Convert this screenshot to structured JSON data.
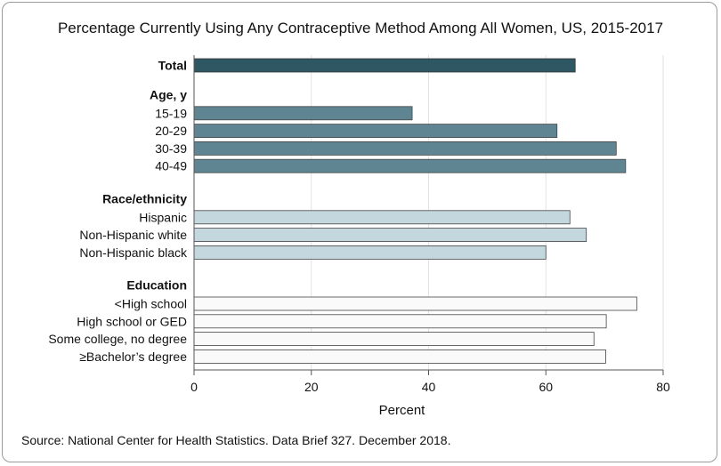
{
  "chart_data": {
    "type": "bar",
    "orientation": "horizontal",
    "title": "Percentage Currently Using Any Contraceptive Method Among All Women, US, 2015-2017",
    "xlabel": "Percent",
    "xlim": [
      0,
      80
    ],
    "xticks": [
      0,
      20,
      40,
      60,
      80
    ],
    "grid": true,
    "groups": [
      {
        "name": "Total",
        "color": "#2e5663",
        "bars": [
          {
            "label": "",
            "value": 65
          }
        ]
      },
      {
        "name": "Age, y",
        "color": "#5f8592",
        "bars": [
          {
            "label": "15-19",
            "value": 37.2
          },
          {
            "label": "20-29",
            "value": 61.9
          },
          {
            "label": "30-39",
            "value": 72.0
          },
          {
            "label": "40-49",
            "value": 73.6
          }
        ]
      },
      {
        "name": "Race/ethnicity",
        "color": "#c4d7df",
        "bars": [
          {
            "label": "Hispanic",
            "value": 64.1
          },
          {
            "label": "Non-Hispanic white",
            "value": 66.9
          },
          {
            "label": "Non-Hispanic black",
            "value": 60.0
          }
        ]
      },
      {
        "name": "Education",
        "color": "#fafafa",
        "bars": [
          {
            "label": "<High school",
            "value": 75.5
          },
          {
            "label": "High school or GED",
            "value": 70.3
          },
          {
            "label": "Some college, no degree",
            "value": 68.2
          },
          {
            "label": "≥Bachelor’s degree",
            "value": 70.2
          }
        ]
      }
    ]
  },
  "source": "Source: National Center for Health Statistics. Data Brief 327. December 2018."
}
